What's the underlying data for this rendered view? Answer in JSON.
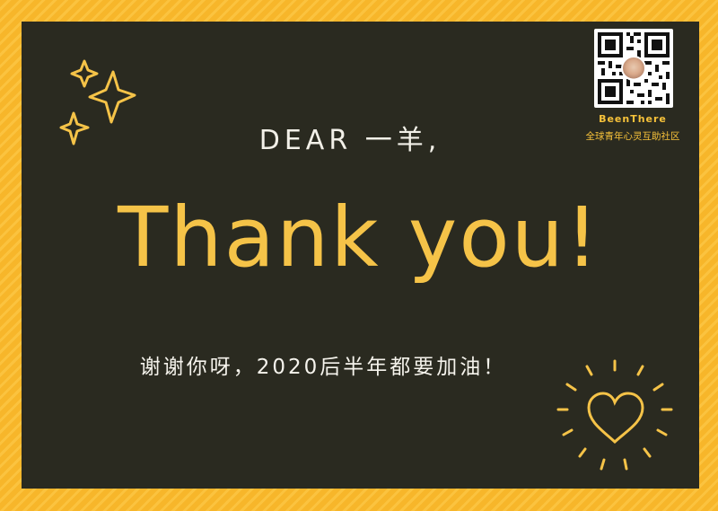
{
  "card": {
    "greeting": "DEAR 一羊,",
    "headline": "Thank you!",
    "message": "谢谢你呀，2020后半年都要加油！"
  },
  "brand": {
    "name": "BeenThere",
    "tagline": "全球青年心灵互助社区"
  },
  "icons": {
    "sparkles": "sparkle-icon",
    "heart": "heart-icon",
    "qr": "qr-code-icon"
  },
  "colors": {
    "frame": "#f7b62a",
    "board": "#2a2a20",
    "accent": "#f5c348",
    "text": "#f2f0e8"
  }
}
